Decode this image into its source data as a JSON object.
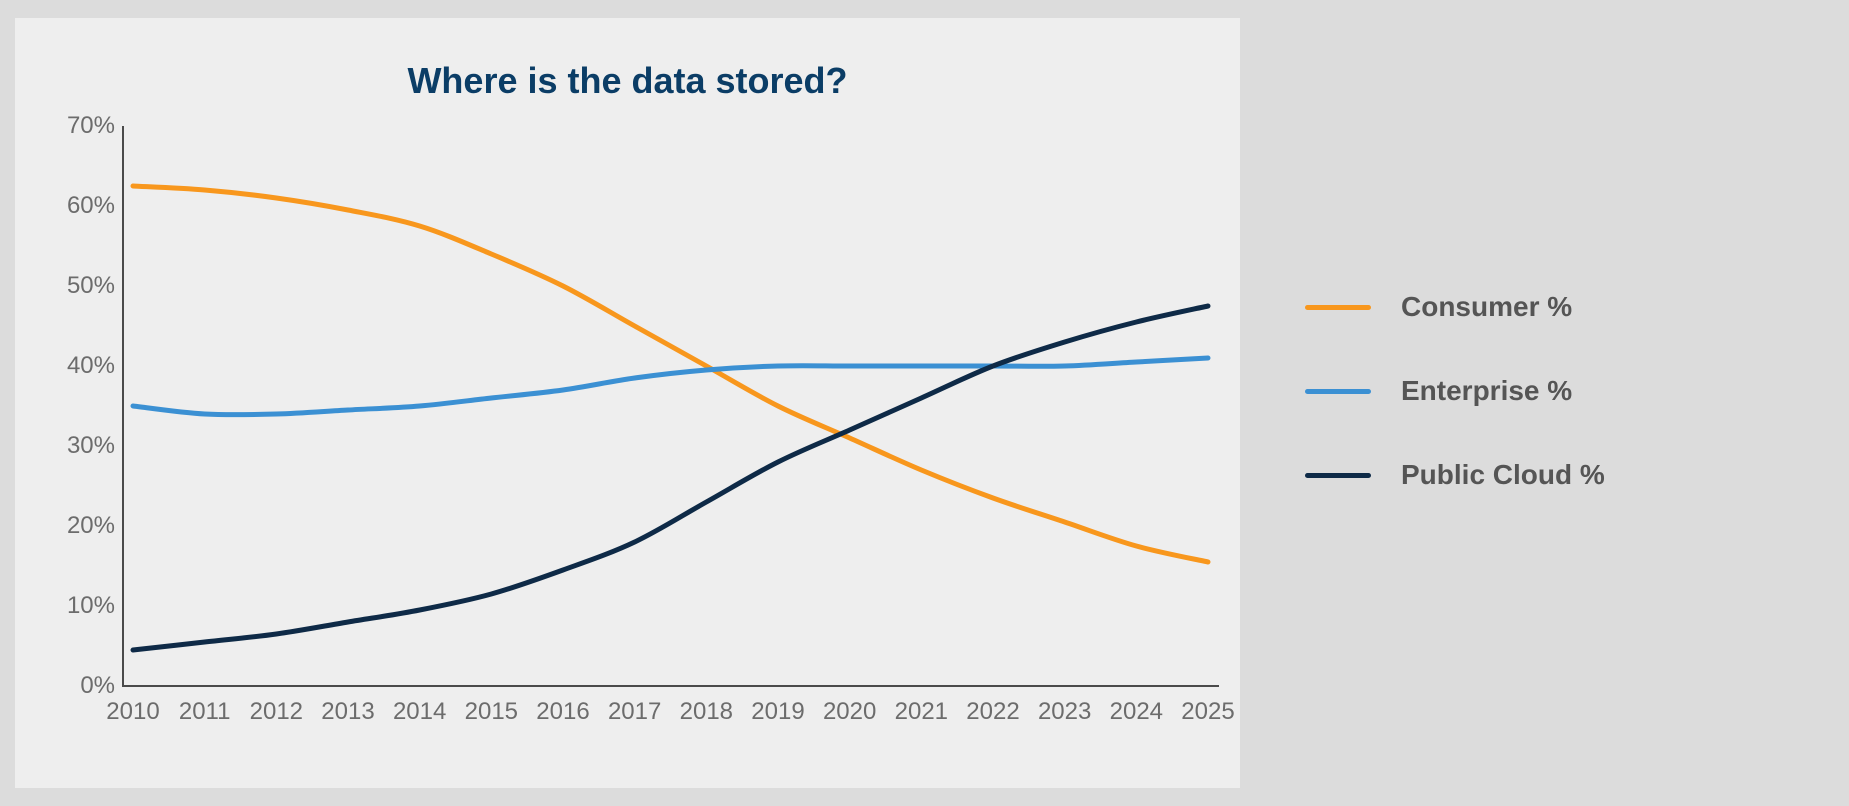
{
  "chart": {
    "type": "line",
    "title": "Where is the data stored?",
    "title_color": "#0b3d66",
    "title_fontsize": 36,
    "background_color": "#eeeeee",
    "page_background_color": "#dcdcdc",
    "axis_color": "#4a4a4a",
    "tick_label_color": "#6c6c6c",
    "tick_fontsize": 24,
    "line_width": 5,
    "x": {
      "categories": [
        "2010",
        "2011",
        "2012",
        "2013",
        "2014",
        "2015",
        "2016",
        "2017",
        "2018",
        "2019",
        "2020",
        "2021",
        "2022",
        "2023",
        "2024",
        "2025"
      ]
    },
    "y": {
      "min": 0,
      "max": 70,
      "tick_step": 10,
      "ticks": [
        "0%",
        "10%",
        "20%",
        "30%",
        "40%",
        "50%",
        "60%",
        "70%"
      ]
    },
    "series": [
      {
        "name": "Consumer %",
        "color": "#f8971d",
        "values": [
          62.5,
          62,
          61,
          59.5,
          57.5,
          54,
          50,
          45,
          40,
          35,
          31,
          27,
          23.5,
          20.5,
          17.5,
          15.5
        ]
      },
      {
        "name": "Enterprise %",
        "color": "#3b90d3",
        "values": [
          35,
          34,
          34,
          34.5,
          35,
          36,
          37,
          38.5,
          39.5,
          40,
          40,
          40,
          40,
          40,
          40.5,
          41
        ]
      },
      {
        "name": "Public Cloud %",
        "color": "#0e2a47",
        "values": [
          4.5,
          5.5,
          6.5,
          8,
          9.5,
          11.5,
          14.5,
          18,
          23,
          28,
          32,
          36,
          40,
          43,
          45.5,
          47.5
        ]
      }
    ],
    "legend": {
      "label_color": "#555555",
      "label_fontsize": 28
    }
  }
}
